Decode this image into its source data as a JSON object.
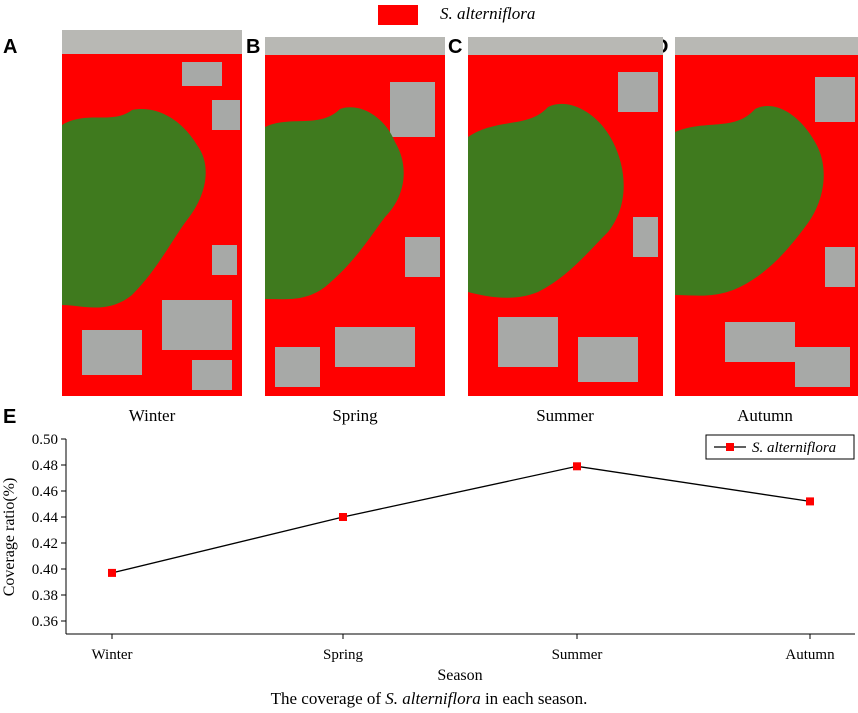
{
  "top_legend": {
    "label": "S. alterniflora",
    "color": "#ff0000"
  },
  "panels": [
    {
      "letter": "A",
      "season": "Winter"
    },
    {
      "letter": "B",
      "season": "Spring"
    },
    {
      "letter": "C",
      "season": "Summer"
    },
    {
      "letter": "D",
      "season": "Autumn"
    }
  ],
  "panel_e_letter": "E",
  "colors": {
    "coverage": "#ff0000",
    "canopy": "#3f7a1e",
    "mudflat": "#a7a9a7",
    "line": "#000000"
  },
  "chart_data": {
    "type": "line",
    "categories": [
      "Winter",
      "Spring",
      "Summer",
      "Autumn"
    ],
    "series": [
      {
        "name": "S. alterniflora",
        "values": [
          0.397,
          0.44,
          0.479,
          0.452
        ]
      }
    ],
    "ylabel": "Coverage ratio(%)",
    "xlabel": "Season",
    "ylim": [
      0.35,
      0.5
    ],
    "yticks": [
      "0.36",
      "0.38",
      "0.40",
      "0.42",
      "0.44",
      "0.46",
      "0.48",
      "0.50"
    ],
    "legend_position": "top-right",
    "grid": false
  },
  "caption": {
    "prefix": "The coverage of ",
    "species": "S. alterniflora",
    "suffix": " in each season."
  }
}
